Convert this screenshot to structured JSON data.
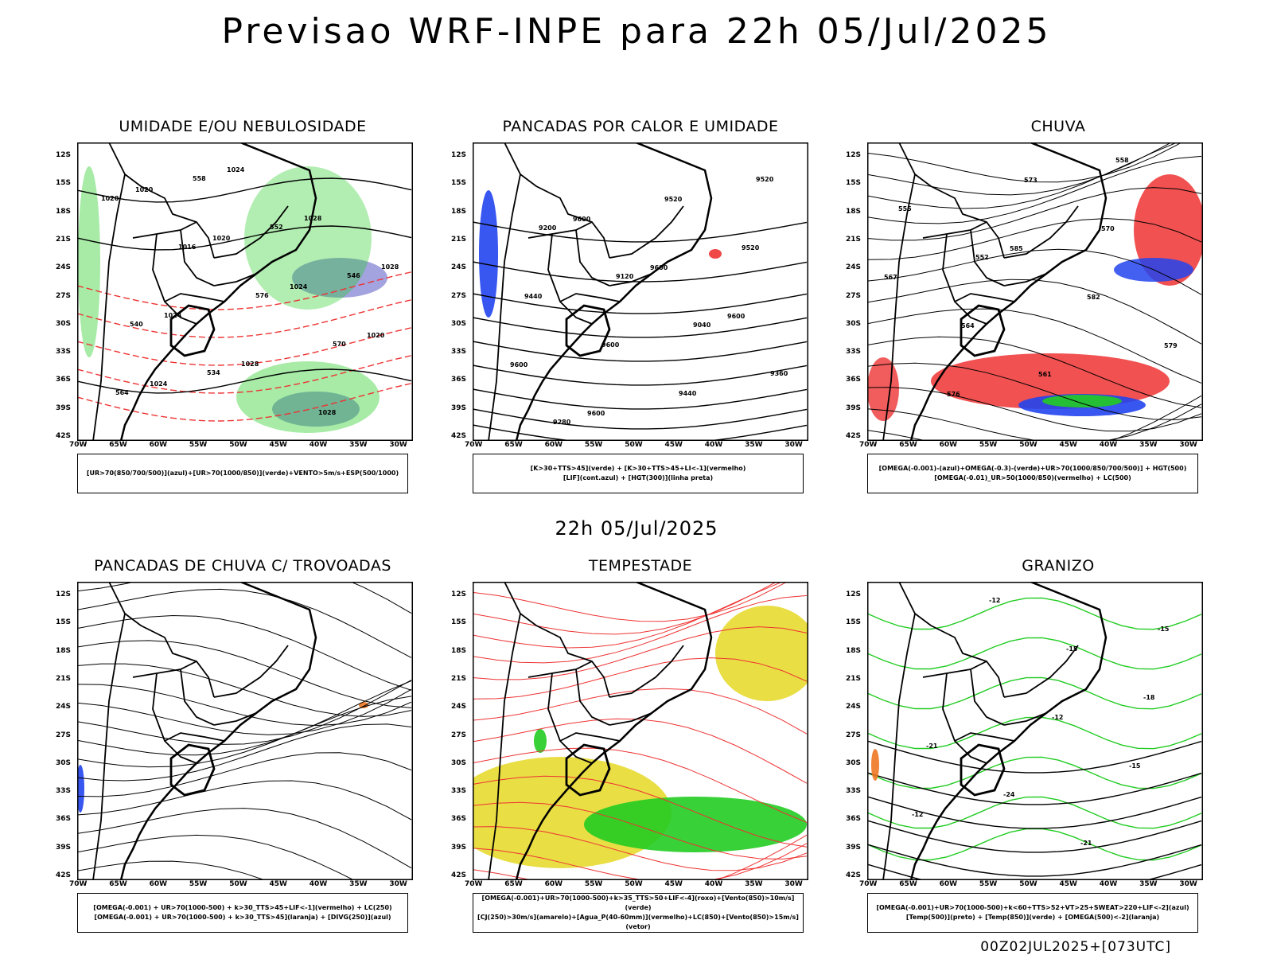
{
  "header": {
    "title": "Previsao WRF-INPE  para 22h 05/Jul/2025",
    "mid_title": "22h 05/Jul/2025",
    "footer": "00Z02JUL2025+[073UTC]"
  },
  "axes": {
    "lat_ticks": [
      "12S",
      "15S",
      "18S",
      "21S",
      "24S",
      "27S",
      "30S",
      "33S",
      "36S",
      "39S",
      "42S"
    ],
    "lon_ticks": [
      "70W",
      "65W",
      "60W",
      "55W",
      "50W",
      "45W",
      "40W",
      "35W",
      "30W"
    ]
  },
  "colors": {
    "green": "#22cc22",
    "red": "#ee3333",
    "blue": "#2244ee",
    "lilac": "#9999dd",
    "yellow": "#e8dc3a",
    "orange": "#ee7722"
  },
  "panels": [
    {
      "title": "UMIDADE E/OU NEBULOSIDADE",
      "legend": [
        "[UR>70(850/700/500)](azul)+[UR>70(1000/850)](verde)+VENTO>5m/s+ESP(500/1000)"
      ],
      "labels": [
        "1020",
        "1020",
        "1024",
        "1020",
        "1024",
        "1024",
        "1028",
        "1028",
        "1024",
        "1028",
        "1028",
        "1020",
        "1016",
        "576",
        "570",
        "564",
        "558",
        "552",
        "546",
        "540",
        "534"
      ]
    },
    {
      "title": "PANCADAS POR CALOR E UMIDADE",
      "legend": [
        "[K>30+TTS>45](verde) + [K>30+TTS>45+LI<-1](vermelho)",
        "[LIF](cont.azul) + [HGT(300)](linha preta)"
      ],
      "labels": [
        "9600",
        "9600",
        "9600",
        "9600",
        "9600",
        "9520",
        "9520",
        "9440",
        "9600",
        "9440",
        "9520",
        "9200",
        "9120",
        "9040",
        "9360",
        "9280"
      ]
    },
    {
      "title": "CHUVA",
      "legend": [
        "[OMEGA(-0.001)-(azul)+OMEGA(-0.3)-(verde)+UR>70(1000/850/700/500)] + HGT(500)",
        "[OMEGA(-0.01)_UR>50(1000/850)(vermelho) + LC(500)"
      ],
      "labels": [
        "585",
        "582",
        "579",
        "576",
        "573",
        "570",
        "567",
        "564",
        "561",
        "558",
        "555",
        "552"
      ]
    },
    {
      "title": "PANCADAS DE CHUVA C/ TROVOADAS",
      "legend": [
        "[OMEGA(-0.001) + UR>70(1000-500) + k>30_TTS>45+LIF<-1](vermelho) + LC(250)",
        "[OMEGA(-0.001) + UR>70(1000-500) + k>30_TTS>45](laranja) + [DIVG(250)](azul)"
      ],
      "labels": []
    },
    {
      "title": "TEMPESTADE",
      "legend": [
        "[OMEGA(-0.001)+UR>70(1000-500)+k>35_TTS>50+LIF<-4](roxo)+[Vento(850)>10m/s](verde)",
        "[CJ(250)>30m/s](amarelo)+[Agua_P(40-60mm)](vermelho)+LC(850)+[Vento(850)>15m/s](vetor)"
      ],
      "labels": []
    },
    {
      "title": "GRANIZO",
      "legend": [
        "[OMEGA(-0.001)+UR>70(1000-500)+k<60+TTS>52+VT>25+SWEAT>220+LIF<-2](azul)",
        "[Temp(500)](preto) + [Temp(850)](verde) + [OMEGA(500)<-2](laranja)"
      ],
      "labels": [
        "-12",
        "-15",
        "-12",
        "-12",
        "-15",
        "-18",
        "-21",
        "-24",
        "-21",
        "-15"
      ]
    }
  ]
}
